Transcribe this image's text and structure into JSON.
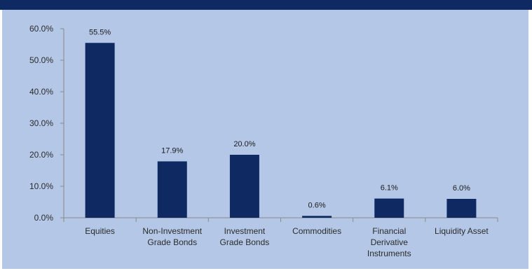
{
  "chart_data": {
    "type": "bar",
    "categories": [
      [
        "Equities"
      ],
      [
        "Non-Investment",
        "Grade Bonds"
      ],
      [
        "Investment",
        "Grade Bonds"
      ],
      [
        "Commodities"
      ],
      [
        "Financial",
        "Derivative",
        "Instruments"
      ],
      [
        "Liquidity Asset"
      ]
    ],
    "values": [
      55.5,
      17.9,
      20.0,
      0.6,
      6.1,
      6.0
    ],
    "data_labels": [
      "55.5%",
      "17.9%",
      "20.0%",
      "0.6%",
      "6.1%",
      "6.0%"
    ],
    "y_ticks": [
      "0.0%",
      "10.0%",
      "20.0%",
      "30.0%",
      "40.0%",
      "50.0%",
      "60.0%"
    ],
    "ylim": [
      0,
      60
    ],
    "grid": false,
    "bar_color": "#0f2a63",
    "background_color": "#b4c7e7",
    "header_color": "#0f2a63"
  }
}
